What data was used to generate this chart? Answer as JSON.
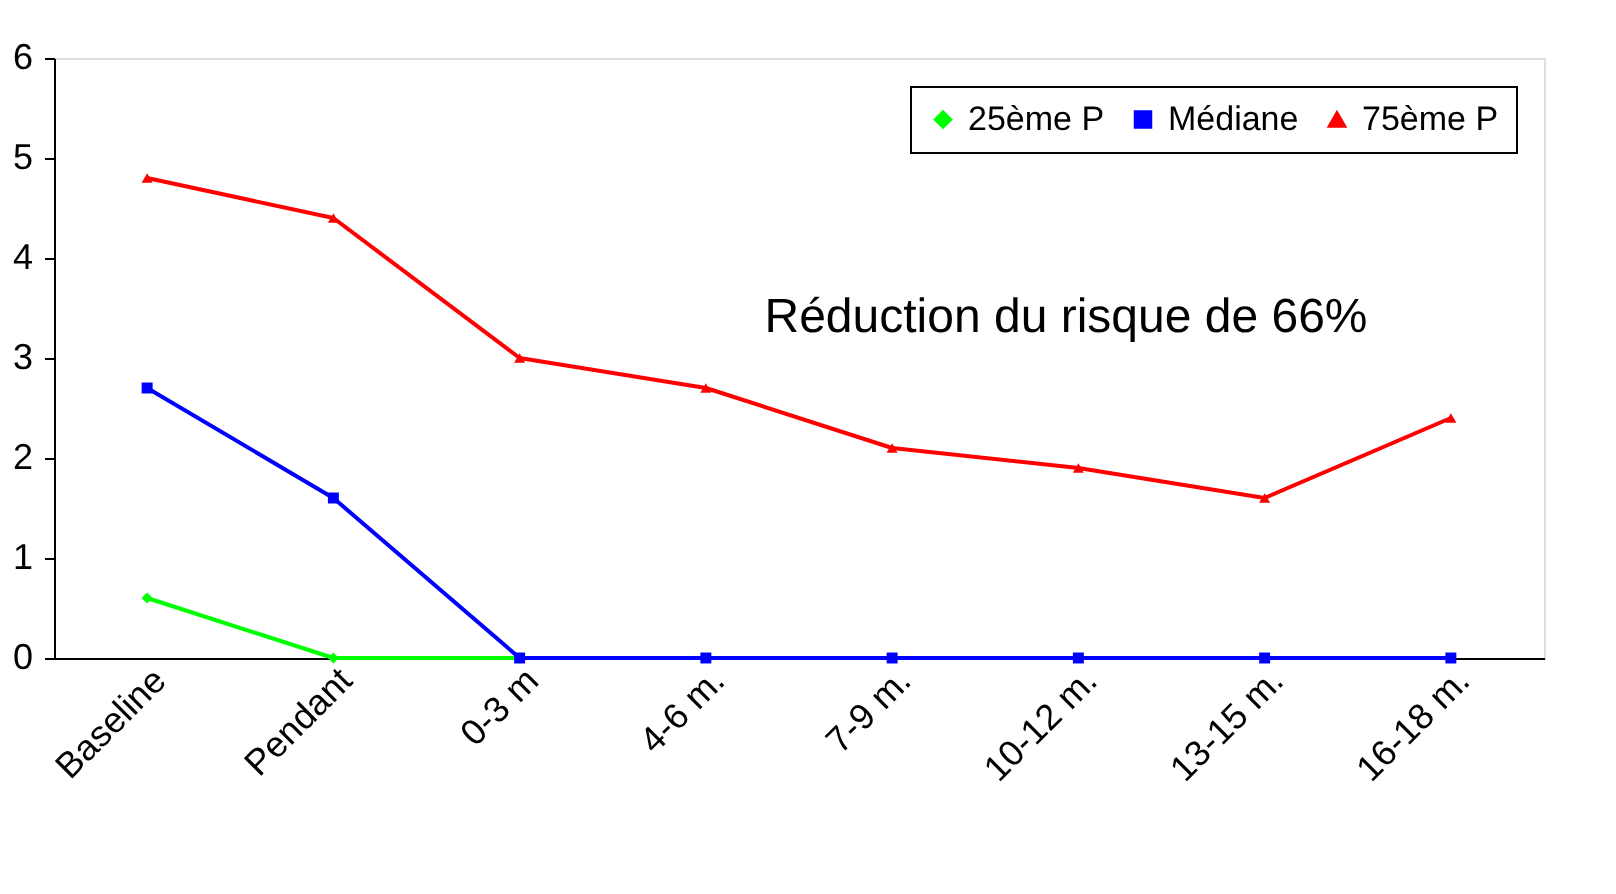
{
  "chart_data": {
    "type": "line",
    "categories": [
      "Baseline",
      "Pendant",
      "0-3 m",
      "4-6 m.",
      "7-9 m.",
      "10-12 m.",
      "13-15 m.",
      "16-18 m."
    ],
    "series": [
      {
        "name": "25ème P",
        "color": "#00ff00",
        "marker": "diamond",
        "values": [
          0.6,
          0,
          0,
          null,
          null,
          null,
          null,
          null
        ]
      },
      {
        "name": "Médiane",
        "color": "#0000ff",
        "marker": "square",
        "values": [
          2.7,
          1.6,
          0,
          0,
          0,
          0,
          0,
          0
        ]
      },
      {
        "name": "75ème P",
        "color": "#ff0000",
        "marker": "triangle",
        "values": [
          4.8,
          4.4,
          3.0,
          2.7,
          2.1,
          1.9,
          1.6,
          2.4
        ]
      }
    ],
    "ylim": [
      0,
      6
    ],
    "yticks": [
      0,
      1,
      2,
      3,
      4,
      5,
      6
    ],
    "grid": false,
    "legend": "top right",
    "line_style": "solid",
    "annotations": [
      "Réduction du risque de 66%"
    ]
  }
}
